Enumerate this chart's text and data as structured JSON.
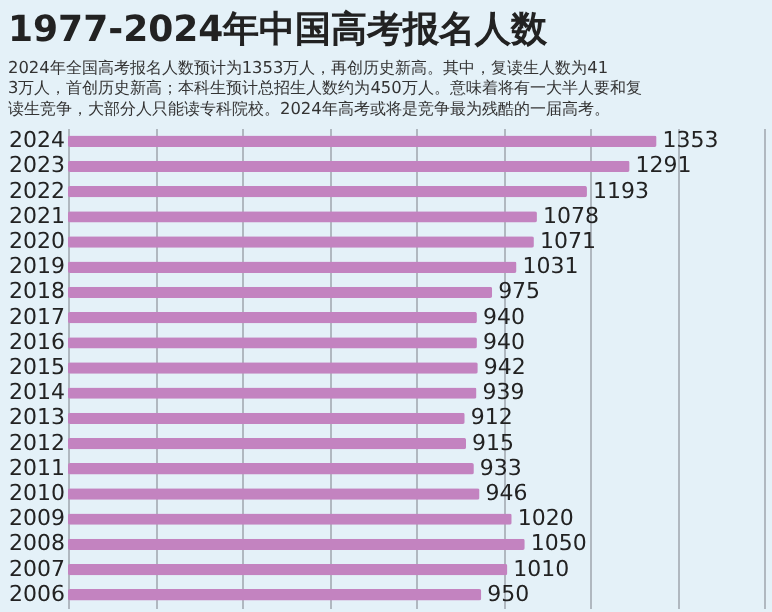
{
  "chart_data": {
    "type": "bar",
    "orientation": "horizontal",
    "title": "1977-2024年中国高考报名人数",
    "subtitle": "2024年全国高考报名人数预计为1353万人，再创历史新高。其中，复读生人数为413万人，首创历史新高；本科生预计总招生人数约为450万人。意味着将有一大半人要和复读生竞争，大部分人只能读专科院校。2024年高考或将是竞争最为残酷的一届高考。",
    "categories": [
      "2024",
      "2023",
      "2022",
      "2021",
      "2020",
      "2019",
      "2018",
      "2017",
      "2016",
      "2015",
      "2014",
      "2013",
      "2012",
      "2011",
      "2010",
      "2009",
      "2008",
      "2007",
      "2006"
    ],
    "values": [
      1353,
      1291,
      1193,
      1078,
      1071,
      1031,
      975,
      940,
      940,
      942,
      939,
      912,
      915,
      933,
      946,
      1020,
      1050,
      1010,
      950
    ],
    "color": "#c383c0",
    "xlim": [
      0,
      1600
    ],
    "xticks": [
      {
        "value": 0,
        "label": null
      },
      {
        "value": 200,
        "label": null
      },
      {
        "value": 400,
        "label": null
      },
      {
        "value": 600,
        "label": null
      },
      {
        "value": 800,
        "label": null
      },
      {
        "value": 1000,
        "label": null
      },
      {
        "value": 1200,
        "label": null
      },
      {
        "value": 1400,
        "label": null
      },
      {
        "value": 1600,
        "label": null
      }
    ],
    "tick_labels": "y",
    "grid": "x",
    "data_labels": true
  }
}
